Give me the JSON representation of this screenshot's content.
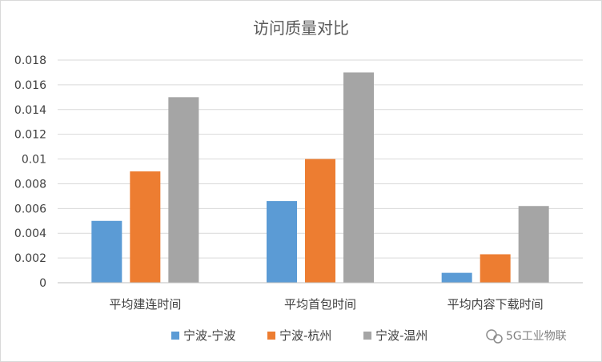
{
  "chart_data": {
    "type": "bar",
    "title": "访问质量对比",
    "categories": [
      "平均建连时间",
      "平均首包时间",
      "平均内容下载时间"
    ],
    "series": [
      {
        "name": "宁波-宁波",
        "color": "#5b9bd5",
        "values": [
          0.005,
          0.0066,
          0.0008
        ]
      },
      {
        "name": "宁波-杭州",
        "color": "#ed7d31",
        "values": [
          0.009,
          0.01,
          0.0023
        ]
      },
      {
        "name": "宁波-温州",
        "color": "#a5a5a5",
        "values": [
          0.015,
          0.017,
          0.0062
        ]
      }
    ],
    "ylim": [
      0,
      0.018
    ],
    "yticks": [
      "0",
      "0.002",
      "0.004",
      "0.006",
      "0.008",
      "0.01",
      "0.012",
      "0.014",
      "0.016",
      "0.018"
    ],
    "grid": true,
    "legend": "bottom"
  },
  "watermark": {
    "text": "5G工业物联"
  }
}
